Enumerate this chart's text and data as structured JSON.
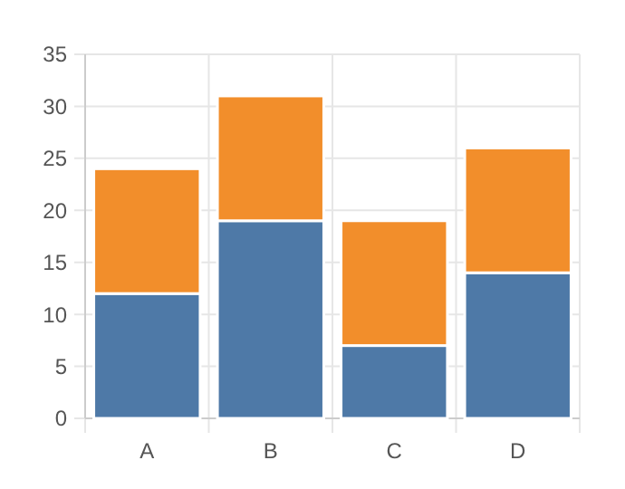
{
  "chart_data": {
    "type": "bar",
    "stacked": true,
    "categories": [
      "A",
      "B",
      "C",
      "D"
    ],
    "series": [
      {
        "color": "#4e79a7",
        "values": [
          12,
          19,
          7,
          14
        ]
      },
      {
        "color": "#f28e2b",
        "values": [
          12,
          12,
          12,
          12
        ]
      }
    ],
    "ylim": [
      0,
      35
    ],
    "yticks": [
      0,
      5,
      10,
      15,
      20,
      25,
      30,
      35
    ],
    "grid": true
  }
}
